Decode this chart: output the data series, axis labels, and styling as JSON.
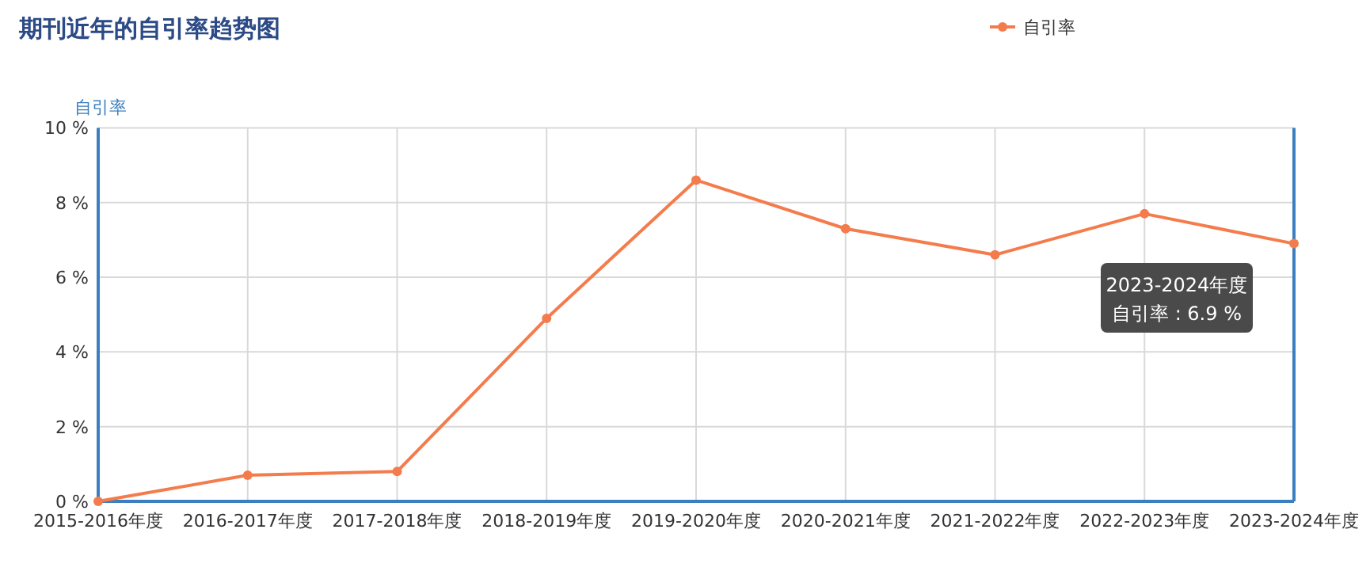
{
  "chart_data": {
    "type": "line",
    "title": "期刊近年的自引率趋势图",
    "ylabel": "自引率",
    "categories": [
      "2015-2016年度",
      "2016-2017年度",
      "2017-2018年度",
      "2018-2019年度",
      "2019-2020年度",
      "2020-2021年度",
      "2021-2022年度",
      "2022-2023年度",
      "2023-2024年度"
    ],
    "series": [
      {
        "name": "自引率",
        "color": "#f47c4c",
        "values": [
          0.0,
          0.7,
          0.8,
          4.9,
          8.6,
          7.3,
          6.6,
          7.7,
          6.9
        ]
      }
    ],
    "ylim": [
      0,
      10
    ],
    "yticks": [
      {
        "value": 0,
        "label": "0 %"
      },
      {
        "value": 2,
        "label": "2 %"
      },
      {
        "value": 4,
        "label": "4 %"
      },
      {
        "value": 6,
        "label": "6 %"
      },
      {
        "value": 8,
        "label": "8 %"
      },
      {
        "value": 10,
        "label": "10 %"
      }
    ],
    "annotations": [
      "2023-2024年度",
      "自引率 : 6.9 %"
    ],
    "grid": true,
    "legend": "top right",
    "marker": "circle",
    "line_style": "solid"
  }
}
